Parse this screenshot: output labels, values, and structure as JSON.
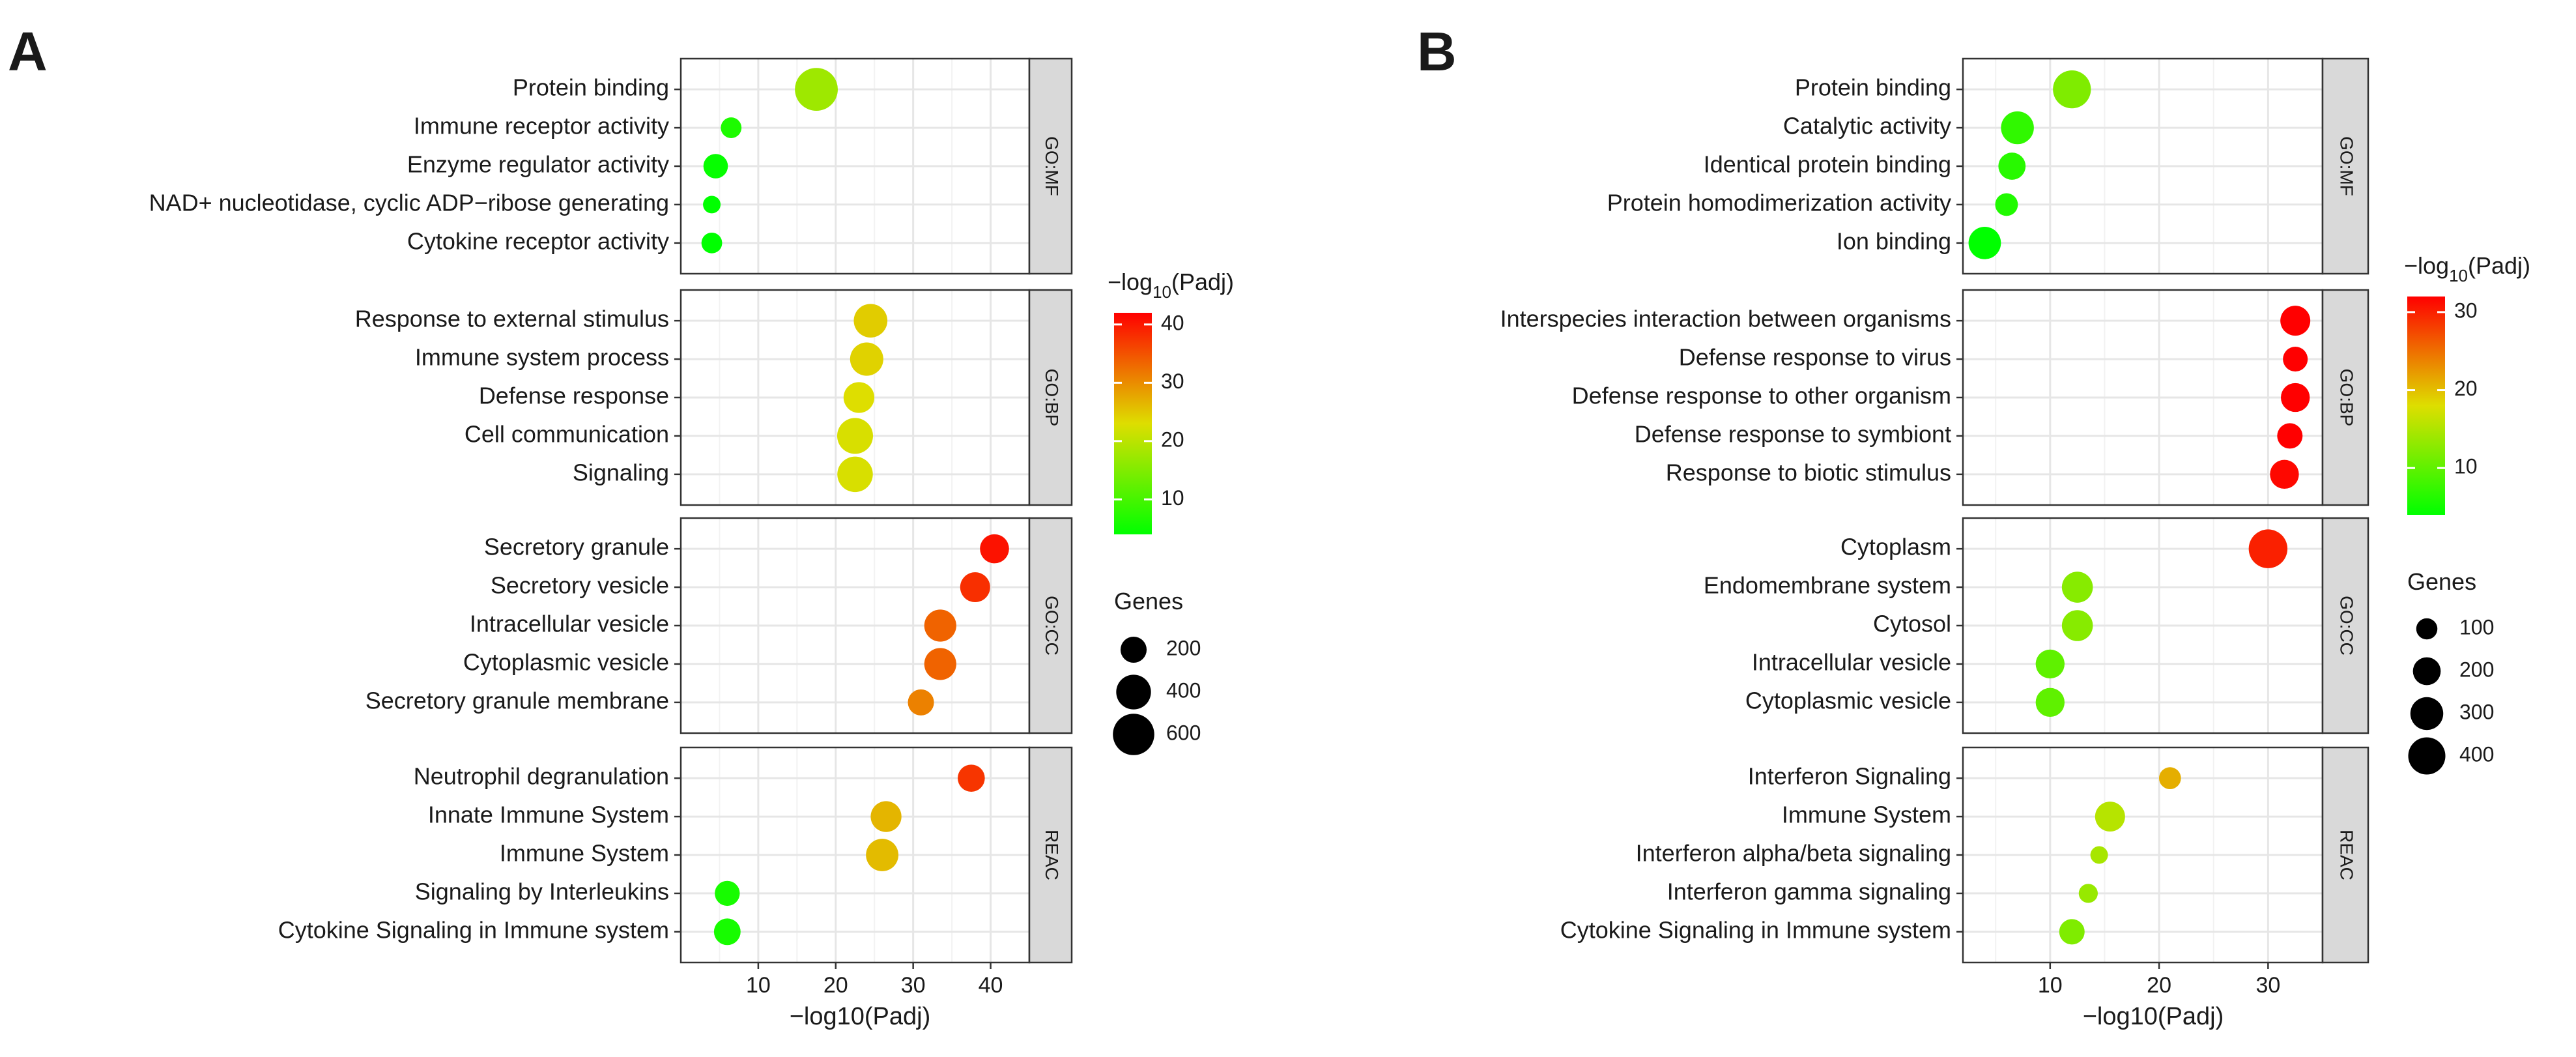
{
  "chart_data": [
    {
      "type": "scatter",
      "panel_label": "A",
      "xlabel": "−log10(Padj)",
      "xticks": [
        10,
        20,
        30,
        40
      ],
      "xlim": [
        0,
        45
      ],
      "color_legend": {
        "title_prefix": "−log",
        "title_sub": "10",
        "title_suffix": "(Padj)",
        "ticks": [
          10,
          20,
          30,
          40
        ],
        "range": [
          4,
          42
        ]
      },
      "size_legend": {
        "title": "Genes",
        "values": [
          200,
          400,
          600
        ],
        "range": [
          0,
          700
        ]
      },
      "facets": [
        {
          "strip": "GO:MF",
          "points": [
            {
              "term": "Protein binding",
              "x": 17.5,
              "genes": 650
            },
            {
              "term": "Immune receptor activity",
              "x": 6.5,
              "genes": 110
            },
            {
              "term": "Enzyme regulator activity",
              "x": 4.5,
              "genes": 170
            },
            {
              "term": "NAD+ nucleotidase, cyclic ADP−ribose generating",
              "x": 4.0,
              "genes": 70
            },
            {
              "term": "Cytokine receptor activity",
              "x": 4.0,
              "genes": 110
            }
          ]
        },
        {
          "strip": "GO:BP",
          "points": [
            {
              "term": "Response to external stimulus",
              "x": 24.5,
              "genes": 370
            },
            {
              "term": "Immune system process",
              "x": 24.0,
              "genes": 360
            },
            {
              "term": "Defense response",
              "x": 23.0,
              "genes": 300
            },
            {
              "term": "Cell communication",
              "x": 22.5,
              "genes": 430
            },
            {
              "term": "Signaling",
              "x": 22.5,
              "genes": 420
            }
          ]
        },
        {
          "strip": "GO:CC",
          "points": [
            {
              "term": "Secretory granule",
              "x": 40.5,
              "genes": 260
            },
            {
              "term": "Secretory vesicle",
              "x": 38.0,
              "genes": 280
            },
            {
              "term": "Intracellular vesicle",
              "x": 33.5,
              "genes": 330
            },
            {
              "term": "Cytoplasmic vesicle",
              "x": 33.5,
              "genes": 330
            },
            {
              "term": "Secretory granule membrane",
              "x": 31.0,
              "genes": 200
            }
          ]
        },
        {
          "strip": "REAC",
          "points": [
            {
              "term": "Neutrophil degranulation",
              "x": 37.5,
              "genes": 220
            },
            {
              "term": "Innate Immune System",
              "x": 26.5,
              "genes": 300
            },
            {
              "term": "Immune System",
              "x": 26.0,
              "genes": 340
            },
            {
              "term": "Signaling by Interleukins",
              "x": 6.0,
              "genes": 180
            },
            {
              "term": "Cytokine Signaling in Immune system",
              "x": 6.0,
              "genes": 210
            }
          ]
        }
      ]
    },
    {
      "type": "scatter",
      "panel_label": "B",
      "xlabel": "−log10(Padj)",
      "xticks": [
        10,
        20,
        30
      ],
      "xlim": [
        2,
        35
      ],
      "color_legend": {
        "title_prefix": "−log",
        "title_sub": "10",
        "title_suffix": "(Padj)",
        "ticks": [
          10,
          20,
          30
        ],
        "range": [
          4,
          32
        ]
      },
      "size_legend": {
        "title": "Genes",
        "values": [
          100,
          200,
          300,
          400
        ],
        "range": [
          0,
          450
        ]
      },
      "facets": [
        {
          "strip": "GO:MF",
          "points": [
            {
              "term": "Protein binding",
              "x": 12.0,
              "genes": 420
            },
            {
              "term": "Catalytic activity",
              "x": 7.0,
              "genes": 300
            },
            {
              "term": "Identical protein binding",
              "x": 6.5,
              "genes": 190
            },
            {
              "term": "Protein homodimerization activity",
              "x": 6.0,
              "genes": 120
            },
            {
              "term": "Ion binding",
              "x": 4.0,
              "genes": 290
            }
          ]
        },
        {
          "strip": "GO:BP",
          "points": [
            {
              "term": "Interspecies interaction between organisms",
              "x": 32.5,
              "genes": 240
            },
            {
              "term": "Defense response to virus",
              "x": 32.5,
              "genes": 150
            },
            {
              "term": "Defense response to other organism",
              "x": 32.5,
              "genes": 220
            },
            {
              "term": "Defense response to symbiont",
              "x": 32.0,
              "genes": 160
            },
            {
              "term": "Response to biotic stimulus",
              "x": 31.5,
              "genes": 220
            }
          ]
        },
        {
          "strip": "GO:CC",
          "points": [
            {
              "term": "Cytoplasm",
              "x": 30.0,
              "genes": 440
            },
            {
              "term": "Endomembrane system",
              "x": 12.5,
              "genes": 260
            },
            {
              "term": "Cytosol",
              "x": 12.5,
              "genes": 260
            },
            {
              "term": "Intracellular vesicle",
              "x": 10.0,
              "genes": 220
            },
            {
              "term": "Cytoplasmic vesicle",
              "x": 10.0,
              "genes": 220
            }
          ]
        },
        {
          "strip": "REAC",
          "points": [
            {
              "term": "Interferon Signaling",
              "x": 21.0,
              "genes": 110
            },
            {
              "term": "Immune System",
              "x": 15.5,
              "genes": 240
            },
            {
              "term": "Interferon alpha/beta signaling",
              "x": 14.5,
              "genes": 60
            },
            {
              "term": "Interferon gamma signaling",
              "x": 13.5,
              "genes": 75
            },
            {
              "term": "Cytokine Signaling in Immune system",
              "x": 12.0,
              "genes": 160
            }
          ]
        }
      ]
    }
  ]
}
